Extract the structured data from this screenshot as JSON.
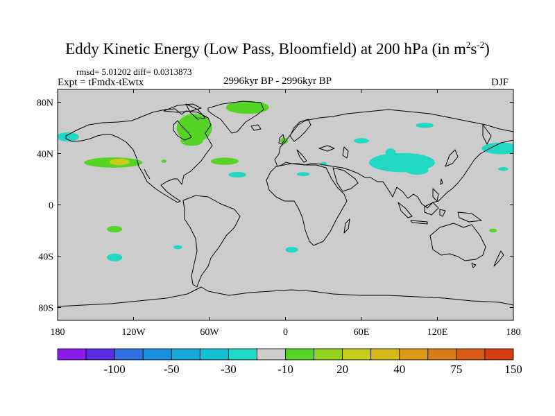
{
  "chart_data": {
    "type": "contour-map",
    "title": "Eddy Kinetic Energy (Low Pass, Bloomfield) at 200 hPa (in m",
    "title_unit_exp1": "2",
    "title_unit_s": "s",
    "title_unit_exp2": "-2",
    "title_close": ")",
    "stats_text": "rmsd= 5.01202  diff= 0.0313873",
    "experiment_label": "Expt = tFmdx-tEwtx",
    "period_label": "2996kyr BP - 2996kyr BP",
    "season_label": "DJF",
    "xlim": [
      -180,
      180
    ],
    "ylim": [
      -90,
      90
    ],
    "x_ticks": [
      {
        "value": -180,
        "label": "180"
      },
      {
        "value": -120,
        "label": "120W"
      },
      {
        "value": -60,
        "label": "60W"
      },
      {
        "value": 0,
        "label": "0"
      },
      {
        "value": 60,
        "label": "60E"
      },
      {
        "value": 120,
        "label": "120E"
      },
      {
        "value": 180,
        "label": "180"
      }
    ],
    "y_ticks": [
      {
        "value": 80,
        "label": "80N"
      },
      {
        "value": 40,
        "label": "40N"
      },
      {
        "value": 0,
        "label": "0"
      },
      {
        "value": -40,
        "label": "40S"
      },
      {
        "value": -80,
        "label": "80S"
      }
    ],
    "colorbar": {
      "colors": [
        "#8a1ce8",
        "#5a2be0",
        "#2f6fe0",
        "#1a8fe0",
        "#18a8d8",
        "#16c0d4",
        "#20d8c4",
        "#cccccc",
        "#55d426",
        "#90d21c",
        "#c8cc1a",
        "#d4b81a",
        "#d89a18",
        "#d87a16",
        "#d65a14",
        "#d43c12"
      ],
      "tick_labels": [
        "-100",
        "-50",
        "-30",
        "-10",
        "20",
        "40",
        "75",
        "150"
      ]
    },
    "anomaly_regions": [
      {
        "name": "n-pacific-high",
        "center_lon": -136,
        "center_lat": 33,
        "rx": 23,
        "ry": 4,
        "color": "#55d426"
      },
      {
        "name": "n-pacific-peak",
        "center_lon": -131,
        "center_lat": 33.5,
        "rx": 8,
        "ry": 2.6,
        "color": "#c8cc1a"
      },
      {
        "name": "alaska-low",
        "center_lon": -172,
        "center_lat": 53,
        "rx": 9,
        "ry": 3.5,
        "color": "#20d8c4"
      },
      {
        "name": "canada-high",
        "center_lon": -72,
        "center_lat": 60,
        "rx": 14,
        "ry": 11,
        "color": "#55d426"
      },
      {
        "name": "canada-high-2",
        "center_lon": -74,
        "center_lat": 50,
        "rx": 9,
        "ry": 4,
        "color": "#55d426"
      },
      {
        "name": "greenland-high",
        "center_lon": -30,
        "center_lat": 76,
        "rx": 17,
        "ry": 5,
        "color": "#55d426"
      },
      {
        "name": "w-atlantic-high",
        "center_lon": -48,
        "center_lat": 34,
        "rx": 11,
        "ry": 2.8,
        "color": "#55d426"
      },
      {
        "name": "us-east-high",
        "center_lon": -96,
        "center_lat": 34,
        "rx": 2,
        "ry": 1.3,
        "color": "#55d426"
      },
      {
        "name": "mid-atlantic-low",
        "center_lon": -38,
        "center_lat": 23.5,
        "rx": 7,
        "ry": 2.2,
        "color": "#20d8c4"
      },
      {
        "name": "europe-high",
        "center_lon": -1,
        "center_lat": 50,
        "rx": 3,
        "ry": 2.5,
        "color": "#55d426"
      },
      {
        "name": "n-africa-low",
        "center_lon": 14,
        "center_lat": 24,
        "rx": 5,
        "ry": 1.6,
        "color": "#20d8c4"
      },
      {
        "name": "n-africa-low-2",
        "center_lon": 30,
        "center_lat": 32,
        "rx": 3,
        "ry": 1.3,
        "color": "#20d8c4"
      },
      {
        "name": "siberia-low",
        "center_lon": 110,
        "center_lat": 62,
        "rx": 7,
        "ry": 2,
        "color": "#20d8c4"
      },
      {
        "name": "c-asia-low",
        "center_lon": 83,
        "center_lat": 41,
        "rx": 4,
        "ry": 3,
        "color": "#20d8c4"
      },
      {
        "name": "asia-low-main",
        "center_lon": 92,
        "center_lat": 33,
        "rx": 26,
        "ry": 7.5,
        "color": "#20d8c4"
      },
      {
        "name": "tibet-low",
        "center_lon": 104,
        "center_lat": 27,
        "rx": 9,
        "ry": 3.5,
        "color": "#20d8c4"
      },
      {
        "name": "n-central-asia-low",
        "center_lon": 60,
        "center_lat": 50,
        "rx": 6,
        "ry": 2,
        "color": "#20d8c4"
      },
      {
        "name": "nw-pacific-low",
        "center_lon": 170,
        "center_lat": 44,
        "rx": 15,
        "ry": 4.5,
        "color": "#20d8c4"
      },
      {
        "name": "w-pacific-low",
        "center_lon": 172,
        "center_lat": 28,
        "rx": 4,
        "ry": 1.5,
        "color": "#20d8c4"
      },
      {
        "name": "s-pacific-high",
        "center_lon": -135,
        "center_lat": -19,
        "rx": 6,
        "ry": 2.5,
        "color": "#55d426"
      },
      {
        "name": "s-pacific-low",
        "center_lon": -135,
        "center_lat": -41,
        "rx": 6,
        "ry": 3,
        "color": "#20d8c4"
      },
      {
        "name": "chile-low",
        "center_lon": -85,
        "center_lat": -33,
        "rx": 3.5,
        "ry": 1.5,
        "color": "#20d8c4"
      },
      {
        "name": "s-atlantic-low",
        "center_lon": 5,
        "center_lat": -35,
        "rx": 5,
        "ry": 2.2,
        "color": "#20d8c4"
      },
      {
        "name": "tasman-high",
        "center_lon": 164,
        "center_lat": -20,
        "rx": 3,
        "ry": 1.5,
        "color": "#55d426"
      }
    ]
  }
}
